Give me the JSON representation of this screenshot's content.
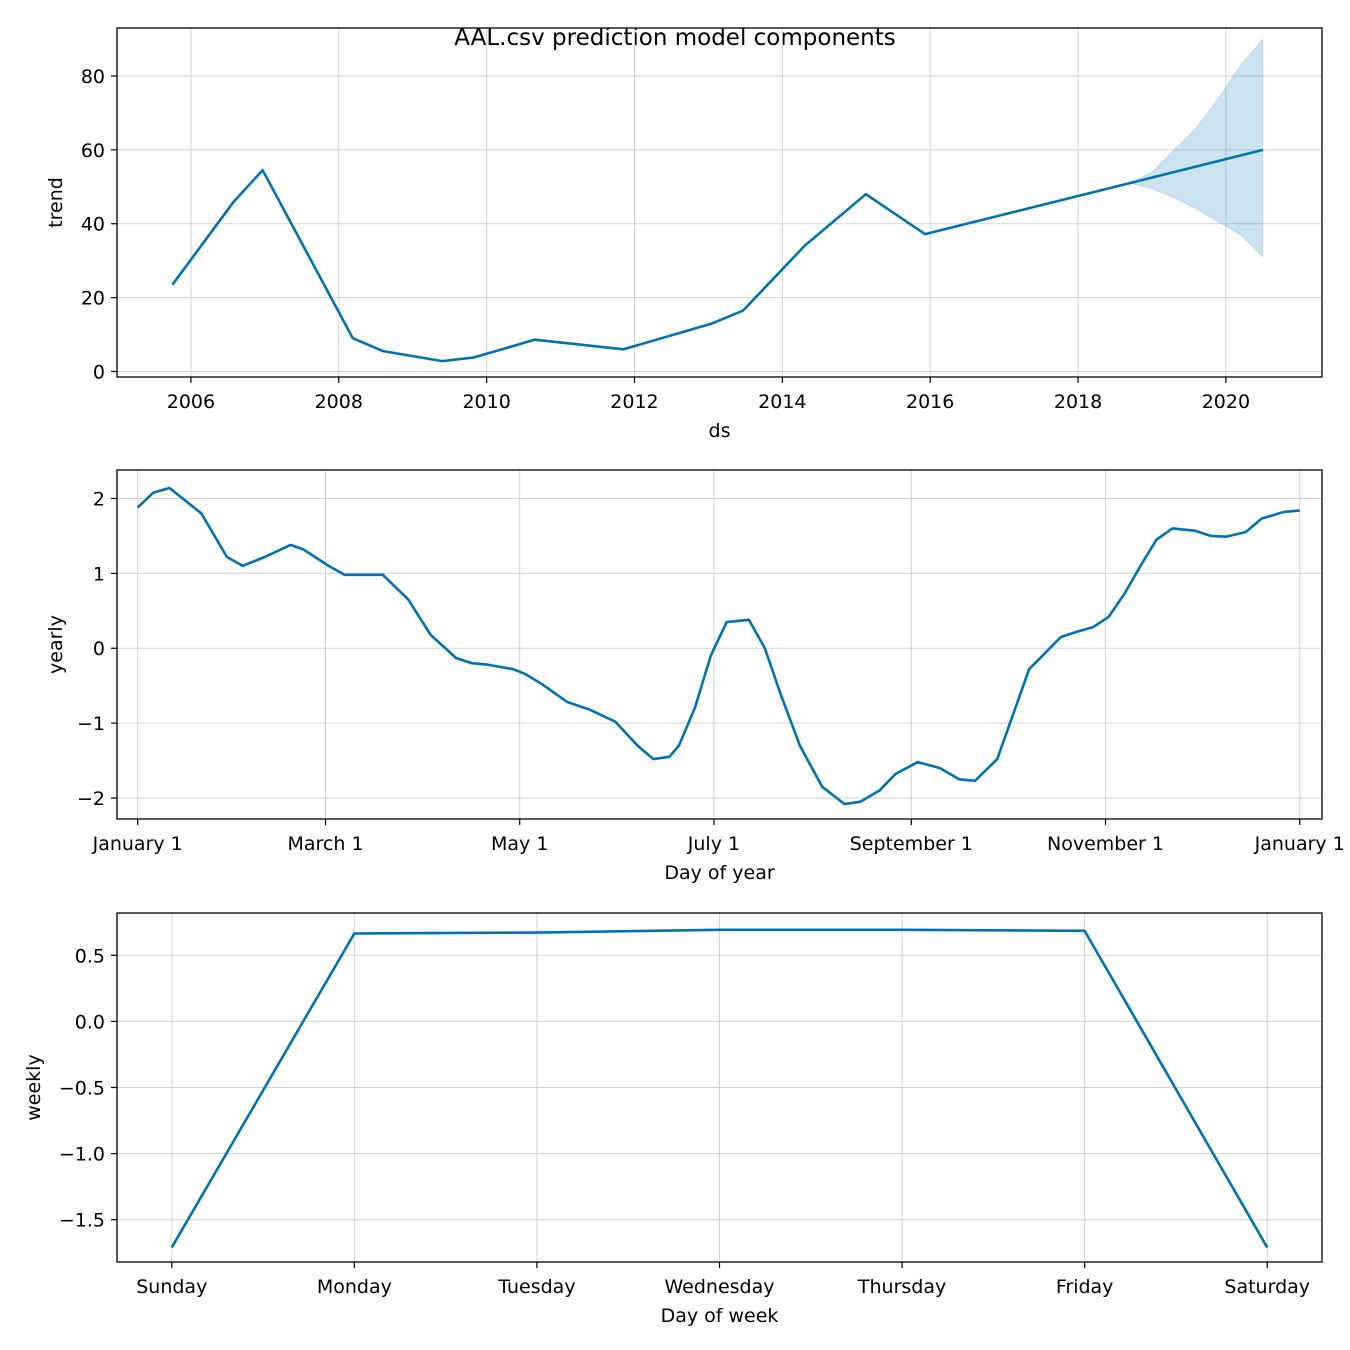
{
  "title": "AAL.csv prediction model components",
  "colors": {
    "line": "#0072B2",
    "band": "#0072B2",
    "grid": "#d3d3d3",
    "frame": "#000000"
  },
  "chart_data": [
    {
      "type": "line",
      "name": "trend",
      "xlabel": "ds",
      "ylabel": "trend",
      "x_type": "time",
      "xlim": [
        2005.0,
        2021.3
      ],
      "ylim": [
        -1.5,
        93
      ],
      "xticks": [
        2006,
        2008,
        2010,
        2012,
        2014,
        2016,
        2018,
        2020
      ],
      "xtick_labels": [
        "2006",
        "2008",
        "2010",
        "2012",
        "2014",
        "2016",
        "2018",
        "2020"
      ],
      "yticks": [
        0,
        20,
        40,
        60,
        80
      ],
      "ytick_labels": [
        "0",
        "20",
        "40",
        "60",
        "80"
      ],
      "grid": true,
      "x": [
        2005.75,
        2006.58,
        2006.97,
        2008.19,
        2008.6,
        2009.4,
        2009.83,
        2010.65,
        2011.85,
        2013.05,
        2013.47,
        2014.3,
        2015.13,
        2015.93,
        2018.7,
        2020.5
      ],
      "y": [
        23.5,
        46,
        54.5,
        9,
        5.5,
        2.8,
        3.8,
        8.6,
        6,
        13,
        16.5,
        34,
        48,
        37.2,
        51,
        60
      ],
      "band_x": [
        2018.7,
        2019.0,
        2019.3,
        2019.6,
        2019.9,
        2020.2,
        2020.5
      ],
      "band_upper": [
        51,
        54,
        60,
        66,
        74,
        83,
        90
      ],
      "band_lower": [
        51,
        49.5,
        47,
        44,
        40.5,
        37,
        31
      ]
    },
    {
      "type": "line",
      "name": "yearly",
      "xlabel": "Day of year",
      "ylabel": "yearly",
      "xlim": [
        -6.5,
        372
      ],
      "ylim": [
        -2.28,
        2.38
      ],
      "xticks": [
        0,
        59,
        120,
        181,
        243,
        304,
        365
      ],
      "xtick_labels": [
        "January 1",
        "March 1",
        "May 1",
        "July 1",
        "September 1",
        "November 1",
        "January 1"
      ],
      "yticks": [
        -2,
        -1,
        0,
        1,
        2
      ],
      "ytick_labels": [
        "−2",
        "−1",
        "0",
        "1",
        "2"
      ],
      "grid": true,
      "x": [
        0,
        5,
        10,
        20,
        28,
        33,
        40,
        48,
        52,
        60,
        65,
        70,
        77,
        85,
        92,
        100,
        105,
        110,
        118,
        122,
        127,
        135,
        142,
        150,
        157,
        162,
        167,
        170,
        175,
        180,
        185,
        192,
        197,
        202,
        208,
        215,
        222,
        227,
        233,
        238,
        245,
        252,
        258,
        263,
        270,
        275,
        280,
        290,
        295,
        300,
        305,
        310,
        315,
        320,
        325,
        332,
        337,
        342,
        348,
        353,
        360,
        365
      ],
      "y": [
        1.88,
        2.08,
        2.14,
        1.8,
        1.22,
        1.1,
        1.22,
        1.38,
        1.32,
        1.1,
        0.98,
        0.98,
        0.98,
        0.65,
        0.18,
        -0.13,
        -0.2,
        -0.22,
        -0.28,
        -0.35,
        -0.48,
        -0.72,
        -0.82,
        -0.98,
        -1.3,
        -1.48,
        -1.45,
        -1.3,
        -0.8,
        -0.1,
        0.35,
        0.38,
        0.0,
        -0.62,
        -1.3,
        -1.85,
        -2.08,
        -2.05,
        -1.9,
        -1.68,
        -1.52,
        -1.6,
        -1.75,
        -1.77,
        -1.48,
        -0.88,
        -0.28,
        0.15,
        0.22,
        0.28,
        0.42,
        0.73,
        1.1,
        1.45,
        1.6,
        1.57,
        1.5,
        1.49,
        1.55,
        1.73,
        1.82,
        1.84
      ]
    },
    {
      "type": "line",
      "name": "weekly",
      "xlabel": "Day of week",
      "ylabel": "weekly",
      "xlim": [
        -0.3,
        6.3
      ],
      "ylim": [
        -1.82,
        0.82
      ],
      "xticks": [
        0,
        1,
        2,
        3,
        4,
        5,
        6
      ],
      "xtick_labels": [
        "Sunday",
        "Monday",
        "Tuesday",
        "Wednesday",
        "Thursday",
        "Friday",
        "Saturday"
      ],
      "yticks": [
        0.5,
        0.0,
        -0.5,
        -1.0,
        -1.5
      ],
      "ytick_labels": [
        "0.5",
        "0.0",
        "−0.5",
        "−1.0",
        "−1.5"
      ],
      "grid": true,
      "x": [
        0,
        1,
        2,
        3,
        4,
        5,
        6
      ],
      "y": [
        -1.71,
        0.665,
        0.672,
        0.693,
        0.693,
        0.685,
        -1.71
      ]
    }
  ]
}
